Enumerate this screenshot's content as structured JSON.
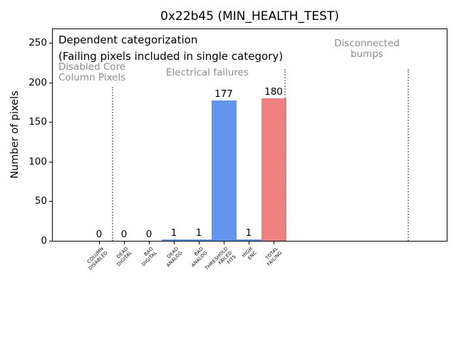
{
  "chart_data": {
    "type": "bar",
    "title": "0x22b45 (MIN_HEALTH_TEST)",
    "ylabel": "Number of pixels",
    "xlabel": "",
    "categories": [
      [
        "COLUMN",
        "DISABLED"
      ],
      [
        "DEAD",
        "DIGITAL"
      ],
      [
        "BAD",
        "DIGITAL"
      ],
      [
        "DEAD",
        "ANALOG"
      ],
      [
        "BAD",
        "ANALOG"
      ],
      [
        "THRESHOLD",
        "FAILED",
        "FITS"
      ],
      [
        "HIGH",
        "ENC"
      ],
      [
        "TOTAL",
        "FAILING"
      ]
    ],
    "values": [
      0,
      0,
      0,
      1,
      1,
      177,
      1,
      180
    ],
    "value_labels": [
      "0",
      "0",
      "0",
      "1",
      "1",
      "177",
      "1",
      "180"
    ],
    "bar_colors": [
      "#6495ED",
      "#6495ED",
      "#6495ED",
      "#6495ED",
      "#6495ED",
      "#6495ED",
      "#6495ED",
      "#F08080"
    ],
    "yticks": [
      0,
      50,
      100,
      150,
      200,
      250
    ],
    "ylim": [
      0,
      268
    ],
    "grid": false,
    "legend": "none",
    "annotations": [
      {
        "id": "dependent-1",
        "lines": [
          "Dependent categorization"
        ],
        "color": "#000000"
      },
      {
        "id": "dependent-2",
        "lines": [
          "(Failing pixels included in single category)"
        ],
        "color": "#000000"
      },
      {
        "id": "disabled-core",
        "lines": [
          "Disabled Core",
          "Column Pixels"
        ],
        "color": "#8c8c8c"
      },
      {
        "id": "electrical",
        "lines": [
          "Electrical failures"
        ],
        "color": "#8c8c8c"
      },
      {
        "id": "disconnected",
        "lines": [
          "Disconnected",
          "bumps"
        ],
        "color": "#8c8c8c"
      }
    ],
    "separators": [
      {
        "x_between_categories": 0.5,
        "style": "dotted"
      },
      {
        "x_between_categories": 7.43,
        "style": "dotted"
      },
      {
        "x_between_categories": 12.37,
        "style": "dotted"
      }
    ]
  },
  "colors": {
    "bar_blue": "#6495ED",
    "bar_red": "#F08080",
    "annotation_gray": "#8c8c8c",
    "separator_gray": "#999999",
    "axis": "#000000"
  }
}
